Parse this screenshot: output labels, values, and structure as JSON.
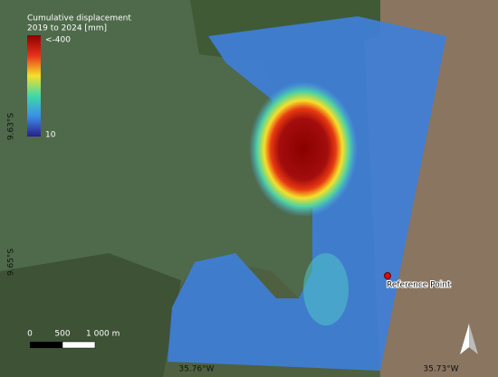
{
  "legend": {
    "title": "Cumulative displacement",
    "subtitle": "2019 to 2024 [mm]",
    "max_label": "<-400",
    "min_label": "10"
  },
  "lat_labels": [
    "9.63°S",
    "9.65°S"
  ],
  "lon_labels": [
    "35.76°W",
    "35.73°W"
  ],
  "reference_point": {
    "label": "Reference Point"
  },
  "scale_bar": {
    "labels": [
      "0",
      "500",
      "1 000 m"
    ]
  }
}
